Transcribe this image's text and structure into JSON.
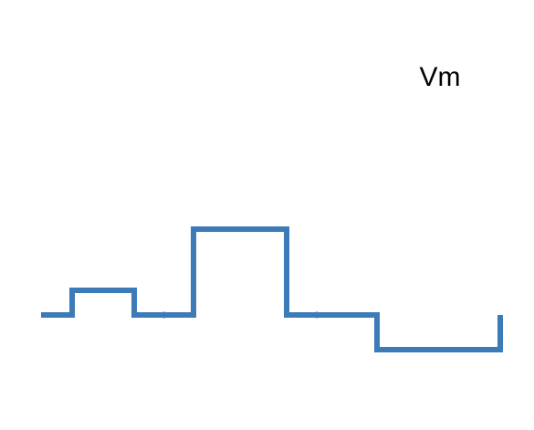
{
  "label": "Vm"
}
